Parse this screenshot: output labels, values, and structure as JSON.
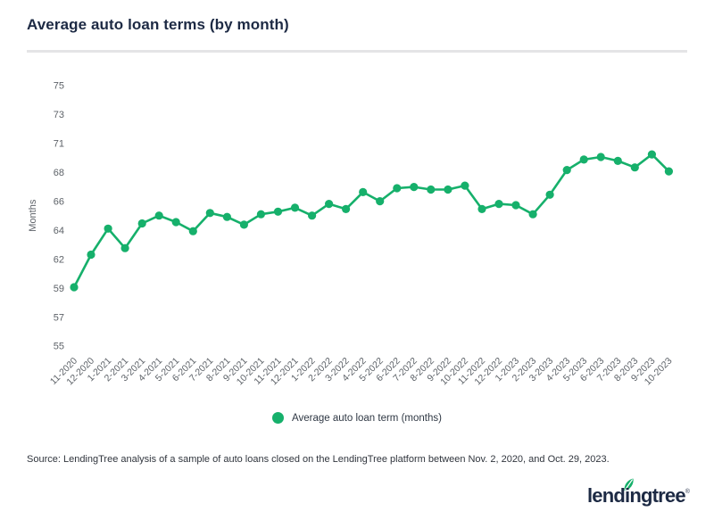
{
  "header": {
    "title": "Average auto loan terms (by month)"
  },
  "chart_data": {
    "type": "line",
    "title": "Average auto loan terms (by month)",
    "xlabel": "",
    "ylabel": "Months",
    "ylim": [
      55,
      75
    ],
    "y_ticks": [
      55,
      57,
      59,
      62,
      64,
      66,
      68,
      71,
      73,
      75
    ],
    "grid": false,
    "legend_position": "bottom",
    "categories": [
      "11-2020",
      "12-2020",
      "1-2021",
      "2-2021",
      "3-2021",
      "4-2021",
      "5-2021",
      "6-2021",
      "7-2021",
      "8-2021",
      "9-2021",
      "10-2021",
      "11-2021",
      "12-2021",
      "1-2022",
      "2-2022",
      "3-2022",
      "4-2022",
      "5-2022",
      "6-2022",
      "7-2022",
      "8-2022",
      "9-2022",
      "10-2022",
      "11-2022",
      "12-2022",
      "1-2023",
      "2-2023",
      "3-2023",
      "4-2023",
      "5-2023",
      "6-2023",
      "7-2023",
      "8-2023",
      "9-2023",
      "10-2023"
    ],
    "series": [
      {
        "name": "Average auto loan term (months)",
        "color": "#16B06B",
        "values": [
          59.5,
          62.0,
          64.0,
          62.5,
          64.4,
          65.0,
          64.5,
          63.8,
          65.2,
          64.9,
          64.3,
          65.1,
          65.3,
          65.6,
          65.0,
          65.9,
          65.5,
          66.8,
          66.1,
          67.1,
          67.2,
          67.0,
          67.0,
          67.3,
          65.5,
          65.9,
          65.8,
          65.1,
          66.6,
          68.5,
          69.3,
          69.5,
          69.2,
          68.7,
          69.7,
          68.4
        ]
      }
    ]
  },
  "legend": {
    "label": "Average auto loan term (months)"
  },
  "source": {
    "text": "Source: LendingTree analysis of a sample of auto loans closed on the LendingTree platform between Nov. 2, 2020, and Oct. 29, 2023."
  },
  "logo": {
    "text": "lendingtree",
    "reg": "®",
    "icon": "leaf-icon"
  },
  "colors": {
    "accent_green": "#16B06B",
    "navy": "#1D2A44",
    "axis_gray": "#5D6268",
    "divider_gray": "#E4E4E6",
    "text_dark": "#30353D"
  }
}
